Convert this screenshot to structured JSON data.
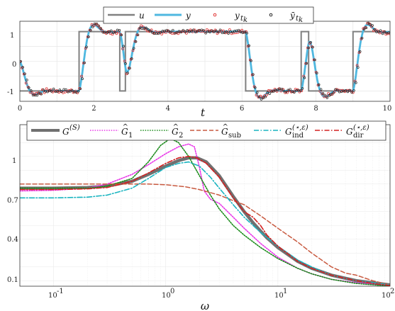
{
  "chart_data": [
    {
      "type": "line",
      "xlabel": "t",
      "ylabel": "",
      "xlim": [
        0,
        10
      ],
      "ylim": [
        -1.35,
        1.35
      ],
      "xticks": [
        "0",
        "2",
        "4",
        "6",
        "8",
        "10"
      ],
      "yticks": [
        "-1",
        "0",
        "1"
      ],
      "grid": true,
      "legend_position": "top",
      "legend": {
        "u": {
          "main": "u",
          "sub": ""
        },
        "y": {
          "main": "y",
          "sub": ""
        },
        "yt": {
          "main": "y",
          "sub": "t",
          "subsub": "k"
        },
        "ybar": {
          "main": "ȳ",
          "sub": "t",
          "subsub": "k"
        }
      },
      "colors": {
        "u": "#808080",
        "y": "#4fb8e0",
        "yt": "#e03030",
        "ybar": "#222222"
      },
      "u_steps": {
        "t": [
          0,
          1.6,
          1.6,
          2.7,
          2.7,
          2.85,
          2.85,
          6.1,
          6.1,
          7.6,
          7.6,
          7.8,
          7.8,
          9.0,
          9.0,
          10
        ],
        "u": [
          -1,
          -1,
          1,
          1,
          -1,
          -1,
          1,
          1,
          -1,
          -1,
          1,
          1,
          -1,
          -1,
          1,
          1
        ]
      }
    },
    {
      "type": "line",
      "xlabel": "ω",
      "ylabel": "",
      "xscale": "log",
      "xlim": [
        0.05,
        100
      ],
      "ylim": [
        0.06,
        1.23
      ],
      "xticks": [
        {
          "value": 0.1,
          "base": "10",
          "exp": "-1"
        },
        {
          "value": 1,
          "base": "10",
          "exp": "0"
        },
        {
          "value": 10,
          "base": "10",
          "exp": "1"
        },
        {
          "value": 100,
          "base": "10",
          "exp": "2"
        }
      ],
      "yticks": [
        "0.1",
        "0.4",
        "0.7",
        "1"
      ],
      "grid": true,
      "legend_position": "top",
      "series": [
        {
          "key": "GS",
          "main": "G",
          "sup": "(S)",
          "sub": "",
          "hat": false,
          "color": "#707070",
          "x": [
            0.05,
            0.1,
            0.2,
            0.3,
            0.5,
            0.7,
            1.0,
            1.3,
            1.6,
            1.9,
            2.3,
            3.0,
            4.0,
            5.0,
            6.0,
            7.0,
            8.0,
            10,
            15,
            20,
            30,
            50,
            70,
            100
          ],
          "y": [
            0.77,
            0.77,
            0.775,
            0.785,
            0.82,
            0.87,
            0.93,
            0.97,
            0.99,
            0.99,
            0.96,
            0.86,
            0.71,
            0.6,
            0.52,
            0.46,
            0.41,
            0.34,
            0.24,
            0.19,
            0.14,
            0.1,
            0.085,
            0.07
          ]
        },
        {
          "key": "G1",
          "main": "G",
          "sup": "",
          "sub": "1",
          "hat": true,
          "color": "#e833e8",
          "x": [
            0.05,
            0.1,
            0.2,
            0.3,
            0.5,
            0.7,
            1.0,
            1.3,
            1.6,
            1.8,
            2.0,
            2.2,
            2.5,
            3.0,
            4.0,
            5.0,
            7.0,
            10,
            15,
            20,
            30,
            50,
            100
          ],
          "y": [
            0.75,
            0.755,
            0.77,
            0.8,
            0.87,
            0.94,
            1.02,
            1.07,
            1.09,
            1.07,
            0.92,
            0.75,
            0.69,
            0.66,
            0.56,
            0.48,
            0.37,
            0.27,
            0.19,
            0.15,
            0.11,
            0.085,
            0.065
          ]
        },
        {
          "key": "G2",
          "main": "G",
          "sup": "",
          "sub": "2",
          "hat": true,
          "color": "#1a8a1a",
          "x": [
            0.05,
            0.1,
            0.2,
            0.3,
            0.5,
            0.7,
            0.9,
            1.1,
            1.3,
            1.6,
            2.0,
            2.5,
            3.0,
            4.0,
            5.0,
            7.0,
            10,
            15,
            20,
            30,
            50,
            100
          ],
          "y": [
            0.77,
            0.77,
            0.77,
            0.785,
            0.84,
            0.96,
            1.08,
            1.13,
            1.1,
            1.0,
            0.86,
            0.72,
            0.62,
            0.5,
            0.43,
            0.34,
            0.26,
            0.19,
            0.15,
            0.11,
            0.08,
            0.06
          ]
        },
        {
          "key": "Gsub",
          "main": "G",
          "sup": "",
          "sub": "sub",
          "hat": true,
          "color": "#c85a40",
          "x": [
            0.05,
            0.1,
            0.2,
            0.3,
            0.5,
            0.7,
            1.0,
            1.5,
            2.0,
            3.0,
            4.0,
            5.0,
            7.0,
            10,
            15,
            20,
            30,
            40,
            50,
            70,
            100
          ],
          "y": [
            0.8,
            0.8,
            0.8,
            0.8,
            0.8,
            0.8,
            0.795,
            0.78,
            0.76,
            0.72,
            0.68,
            0.65,
            0.57,
            0.48,
            0.38,
            0.3,
            0.2,
            0.155,
            0.14,
            0.1,
            0.07
          ]
        },
        {
          "key": "Gind",
          "main": "G",
          "sup": "(⋆,ε)",
          "sub": "ind",
          "hat": false,
          "color": "#19b4c0",
          "x": [
            0.05,
            0.1,
            0.2,
            0.3,
            0.5,
            0.7,
            1.0,
            1.3,
            1.6,
            2.0,
            2.5,
            3.0,
            4.0,
            5.0,
            7.0,
            10,
            15,
            20,
            30,
            50,
            100
          ],
          "y": [
            0.7,
            0.7,
            0.705,
            0.72,
            0.77,
            0.84,
            0.92,
            0.95,
            0.96,
            0.93,
            0.85,
            0.77,
            0.65,
            0.56,
            0.45,
            0.35,
            0.25,
            0.2,
            0.14,
            0.1,
            0.07
          ]
        },
        {
          "key": "Gdir",
          "main": "G",
          "sup": "(⋆,ε)",
          "sub": "dir",
          "hat": false,
          "color": "#d42020",
          "x": [
            0.05,
            0.1,
            0.2,
            0.3,
            0.5,
            0.7,
            1.0,
            1.3,
            1.6,
            1.9,
            2.3,
            3.0,
            4.0,
            5.0,
            6.0,
            7.0,
            8.0,
            10,
            15,
            20,
            30,
            50,
            70,
            100
          ],
          "y": [
            0.76,
            0.76,
            0.765,
            0.775,
            0.82,
            0.88,
            0.95,
            0.99,
            1.0,
            0.99,
            0.95,
            0.85,
            0.7,
            0.6,
            0.56,
            0.5,
            0.43,
            0.35,
            0.24,
            0.19,
            0.14,
            0.1,
            0.08,
            0.065
          ]
        }
      ]
    }
  ]
}
